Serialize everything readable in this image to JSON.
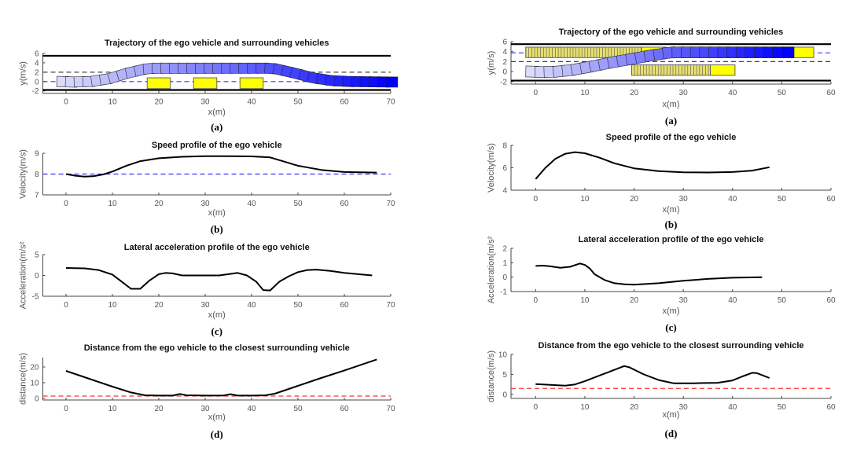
{
  "chart_data": [
    {
      "panel": "left-a",
      "type": "trajectory",
      "title": "Trajectory of the ego vehicle and surrounding vehicles",
      "xlabel": "x(m)",
      "ylabel": "y(m/s)",
      "caption": "(a)",
      "xlim": [
        -5,
        70
      ],
      "ylim": [
        -2.5,
        6
      ],
      "xticks": [
        0,
        10,
        20,
        30,
        40,
        50,
        60,
        70
      ],
      "yticks": [
        -2,
        0,
        2,
        4,
        6
      ],
      "road_edges": [
        5.5,
        -1.8
      ],
      "lane_divider": 2,
      "reference_line": 0,
      "ego_path": {
        "x": [
          -2,
          0,
          4,
          8,
          12,
          16,
          18,
          42,
          44,
          48,
          52,
          56,
          60,
          69
        ],
        "y": [
          0,
          -0.1,
          0,
          0.6,
          1.8,
          2.7,
          2.85,
          2.85,
          2.7,
          1.8,
          0.8,
          0.2,
          0,
          -0.1
        ]
      },
      "obstacles": [
        {
          "x": [
            17.5,
            22.5
          ],
          "y": [
            -1.5,
            0.8
          ]
        },
        {
          "x": [
            27.5,
            32.5
          ],
          "y": [
            -1.5,
            0.8
          ]
        },
        {
          "x": [
            37.5,
            42.5
          ],
          "y": [
            -1.5,
            0.8
          ]
        }
      ],
      "colors": {
        "ego_start": "#dcdcf8",
        "ego_end": "#0000ff",
        "obstacle": "#ffff00",
        "reference": "#3333ff"
      }
    },
    {
      "panel": "left-b",
      "type": "line",
      "title": "Speed profile of the ego vehicle",
      "xlabel": "x(m)",
      "ylabel": "Velocity(m/s)",
      "caption": "(b)",
      "xlim": [
        -5,
        70
      ],
      "ylim": [
        7,
        9
      ],
      "xticks": [
        0,
        10,
        20,
        30,
        40,
        50,
        60,
        70
      ],
      "yticks": [
        7,
        8,
        9
      ],
      "x": [
        0,
        2,
        4,
        6,
        8,
        10,
        13,
        16,
        20,
        25,
        30,
        35,
        40,
        44,
        47,
        50,
        55,
        60,
        67
      ],
      "y": [
        8.0,
        7.92,
        7.88,
        7.9,
        7.98,
        8.12,
        8.4,
        8.62,
        8.76,
        8.83,
        8.86,
        8.86,
        8.85,
        8.8,
        8.6,
        8.4,
        8.2,
        8.1,
        8.07
      ],
      "reference": {
        "value": 8,
        "color": "#3333ff"
      }
    },
    {
      "panel": "left-c",
      "type": "line",
      "title": "Lateral acceleration profile of the ego vehicle",
      "xlabel": "x(m)",
      "ylabel": "Acceleration(m/s²",
      "caption": "(c)",
      "xlim": [
        -5,
        70
      ],
      "ylim": [
        -5,
        5
      ],
      "xticks": [
        0,
        10,
        20,
        30,
        40,
        50,
        60,
        70
      ],
      "yticks": [
        -5,
        0,
        5
      ],
      "x": [
        0,
        4,
        7,
        10,
        12,
        14,
        16,
        18,
        20,
        21.5,
        23,
        25,
        30,
        33,
        35,
        37,
        39,
        41,
        42.5,
        44,
        46,
        48,
        50,
        52,
        54,
        57,
        60,
        63,
        66
      ],
      "y": [
        1.8,
        1.7,
        1.3,
        0.2,
        -1.5,
        -3.2,
        -3.2,
        -1.2,
        0.3,
        0.6,
        0.5,
        0,
        0,
        0,
        0.3,
        0.6,
        0,
        -1.5,
        -3.5,
        -3.6,
        -1.5,
        -0.2,
        0.8,
        1.3,
        1.4,
        1.1,
        0.6,
        0.3,
        0
      ]
    },
    {
      "panel": "left-d",
      "type": "line",
      "title": "Distance from the ego vehicle to the closest surrounding vehicle",
      "xlabel": "x(m)",
      "ylabel": "distance(m/s)",
      "caption": "(d)",
      "xlim": [
        -5,
        70
      ],
      "ylim": [
        -1,
        26
      ],
      "xticks": [
        0,
        10,
        20,
        30,
        40,
        50,
        60,
        70
      ],
      "yticks": [
        0,
        10,
        20
      ],
      "x": [
        0,
        5,
        10,
        14,
        17,
        20,
        23,
        24.5,
        26,
        30,
        34,
        35.5,
        37,
        40,
        43,
        45,
        50,
        55,
        60,
        67
      ],
      "y": [
        17.5,
        12.5,
        7.5,
        3.8,
        2,
        1.8,
        1.8,
        2.8,
        2,
        1.8,
        1.9,
        2.7,
        1.8,
        1.8,
        2,
        3,
        8,
        13,
        17.8,
        24.8
      ],
      "reference": {
        "value": 1.5,
        "color": "#ff3333"
      }
    },
    {
      "panel": "right-a",
      "type": "trajectory",
      "title": "Trajectory of the ego vehicle and surrounding vehicles",
      "xlabel": "x(m)",
      "ylabel": "y(m/s)",
      "caption": "(a)",
      "xlim": [
        -5,
        60
      ],
      "ylim": [
        -2.5,
        6
      ],
      "xticks": [
        0,
        10,
        20,
        30,
        40,
        50,
        60
      ],
      "yticks": [
        -2,
        0,
        2,
        4,
        6
      ],
      "road_edges": [
        5.5,
        -1.8
      ],
      "lane_divider": 2,
      "reference_line": 3.75,
      "ego_path": {
        "x": [
          -2,
          0,
          3,
          6,
          10,
          14,
          18,
          22,
          26,
          28,
          50
        ],
        "y": [
          0,
          -0.1,
          0,
          0.3,
          1,
          1.8,
          2.5,
          3.2,
          3.8,
          3.85,
          3.85
        ]
      },
      "vehicles": [
        {
          "trail": [
            -2,
            21.5
          ],
          "x": [
            21.5,
            26.5
          ],
          "y": [
            2.8,
            4.9
          ]
        },
        {
          "trail": [
            50,
            51.7
          ],
          "x": [
            51.7,
            56.5
          ],
          "y": [
            2.8,
            4.9
          ]
        },
        {
          "trail": [
            19.5,
            35.5
          ],
          "x": [
            35.5,
            40.5
          ],
          "y": [
            -0.75,
            1.35
          ]
        }
      ],
      "colors": {
        "ego_start": "#dcdcf8",
        "ego_end": "#0000ff",
        "obstacle": "#ffff00",
        "reference": "#3333ff"
      }
    },
    {
      "panel": "right-b",
      "type": "line",
      "title": "Speed profile of the ego vehicle",
      "xlabel": "x(m)",
      "ylabel": "Velocity(m/s)",
      "caption": "(b)",
      "xlim": [
        -5,
        60
      ],
      "ylim": [
        4,
        8
      ],
      "xticks": [
        0,
        10,
        20,
        30,
        40,
        50,
        60
      ],
      "yticks": [
        4,
        6,
        8
      ],
      "x": [
        0,
        2,
        4,
        6,
        8,
        10,
        13,
        16,
        20,
        25,
        30,
        35,
        40,
        44,
        47.5
      ],
      "y": [
        5,
        6,
        6.8,
        7.25,
        7.4,
        7.3,
        6.9,
        6.4,
        5.95,
        5.7,
        5.6,
        5.58,
        5.62,
        5.75,
        6.05
      ]
    },
    {
      "panel": "right-c",
      "type": "line",
      "title": "Lateral acceleration profile of the ego vehicle",
      "xlabel": "x(m)",
      "ylabel": "Acceleration(m/s²",
      "caption": "(c)",
      "xlim": [
        -5,
        60
      ],
      "ylim": [
        -1,
        2
      ],
      "xticks": [
        0,
        10,
        20,
        30,
        40,
        50,
        60
      ],
      "yticks": [
        -1,
        0,
        1,
        2
      ],
      "x": [
        0,
        1.5,
        3,
        5,
        7,
        9,
        10,
        11,
        12,
        14,
        16,
        18,
        20,
        25,
        30,
        35,
        40,
        46
      ],
      "y": [
        0.78,
        0.8,
        0.75,
        0.65,
        0.72,
        0.95,
        0.85,
        0.6,
        0.2,
        -0.2,
        -0.42,
        -0.5,
        -0.52,
        -0.42,
        -0.25,
        -0.12,
        -0.04,
        0
      ]
    },
    {
      "panel": "right-d",
      "type": "line",
      "title": "Distance from the ego vehicle to the closest surrounding vehicle",
      "xlabel": "x(m)",
      "ylabel": "distance(m/s)",
      "caption": "(d)",
      "xlim": [
        -5,
        60
      ],
      "ylim": [
        -1,
        10
      ],
      "xticks": [
        0,
        10,
        20,
        30,
        40,
        50,
        60
      ],
      "yticks": [
        0,
        5,
        10
      ],
      "x": [
        0,
        3,
        6,
        8,
        10,
        14,
        18,
        19,
        22,
        25,
        28,
        32,
        37,
        40,
        42,
        44,
        45,
        47.5
      ],
      "y": [
        2.6,
        2.4,
        2.2,
        2.5,
        3.3,
        5.2,
        7.1,
        6.8,
        5,
        3.6,
        2.8,
        2.8,
        2.9,
        3.5,
        4.5,
        5.4,
        5.3,
        4.1
      ],
      "reference": {
        "value": 1.5,
        "color": "#ff3333"
      }
    }
  ]
}
